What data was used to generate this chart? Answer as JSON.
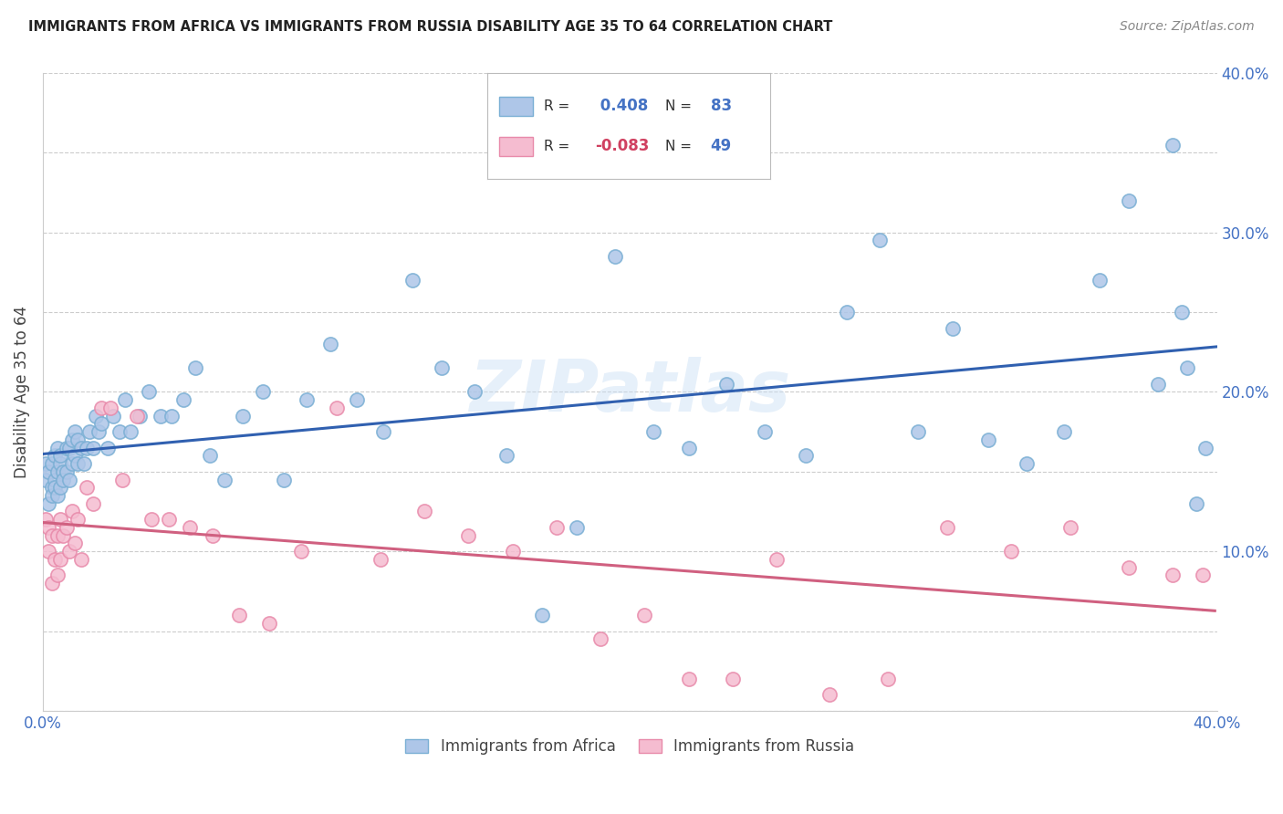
{
  "title": "IMMIGRANTS FROM AFRICA VS IMMIGRANTS FROM RUSSIA DISABILITY AGE 35 TO 64 CORRELATION CHART",
  "source": "Source: ZipAtlas.com",
  "ylabel": "Disability Age 35 to 64",
  "xlim": [
    0.0,
    0.4
  ],
  "ylim": [
    0.0,
    0.4
  ],
  "africa_color": "#aec6e8",
  "russia_color": "#f5bcd0",
  "africa_edge": "#7aafd4",
  "russia_edge": "#e88aaa",
  "trendline_africa_color": "#3060b0",
  "trendline_russia_color": "#d06080",
  "africa_R": 0.408,
  "africa_N": 83,
  "russia_R": -0.083,
  "russia_N": 49,
  "legend_label_africa": "Immigrants from Africa",
  "legend_label_russia": "Immigrants from Russia",
  "watermark": "ZIPatlas",
  "africa_x": [
    0.001,
    0.001,
    0.002,
    0.002,
    0.003,
    0.003,
    0.003,
    0.004,
    0.004,
    0.004,
    0.005,
    0.005,
    0.005,
    0.006,
    0.006,
    0.006,
    0.007,
    0.007,
    0.008,
    0.008,
    0.009,
    0.009,
    0.01,
    0.01,
    0.011,
    0.011,
    0.012,
    0.012,
    0.013,
    0.014,
    0.015,
    0.016,
    0.017,
    0.018,
    0.019,
    0.02,
    0.022,
    0.024,
    0.026,
    0.028,
    0.03,
    0.033,
    0.036,
    0.04,
    0.044,
    0.048,
    0.052,
    0.057,
    0.062,
    0.068,
    0.075,
    0.082,
    0.09,
    0.098,
    0.107,
    0.116,
    0.126,
    0.136,
    0.147,
    0.158,
    0.17,
    0.182,
    0.195,
    0.208,
    0.22,
    0.233,
    0.246,
    0.26,
    0.274,
    0.285,
    0.298,
    0.31,
    0.322,
    0.335,
    0.348,
    0.36,
    0.37,
    0.38,
    0.385,
    0.388,
    0.39,
    0.393,
    0.396
  ],
  "africa_y": [
    0.145,
    0.155,
    0.13,
    0.15,
    0.14,
    0.155,
    0.135,
    0.145,
    0.16,
    0.14,
    0.15,
    0.165,
    0.135,
    0.155,
    0.14,
    0.16,
    0.15,
    0.145,
    0.165,
    0.15,
    0.145,
    0.165,
    0.155,
    0.17,
    0.16,
    0.175,
    0.155,
    0.17,
    0.165,
    0.155,
    0.165,
    0.175,
    0.165,
    0.185,
    0.175,
    0.18,
    0.165,
    0.185,
    0.175,
    0.195,
    0.175,
    0.185,
    0.2,
    0.185,
    0.185,
    0.195,
    0.215,
    0.16,
    0.145,
    0.185,
    0.2,
    0.145,
    0.195,
    0.23,
    0.195,
    0.175,
    0.27,
    0.215,
    0.2,
    0.16,
    0.06,
    0.115,
    0.285,
    0.175,
    0.165,
    0.205,
    0.175,
    0.16,
    0.25,
    0.295,
    0.175,
    0.24,
    0.17,
    0.155,
    0.175,
    0.27,
    0.32,
    0.205,
    0.355,
    0.25,
    0.215,
    0.13,
    0.165
  ],
  "russia_x": [
    0.001,
    0.002,
    0.002,
    0.003,
    0.003,
    0.004,
    0.005,
    0.005,
    0.006,
    0.006,
    0.007,
    0.008,
    0.009,
    0.01,
    0.011,
    0.012,
    0.013,
    0.015,
    0.017,
    0.02,
    0.023,
    0.027,
    0.032,
    0.037,
    0.043,
    0.05,
    0.058,
    0.067,
    0.077,
    0.088,
    0.1,
    0.115,
    0.13,
    0.145,
    0.16,
    0.175,
    0.19,
    0.205,
    0.22,
    0.235,
    0.25,
    0.268,
    0.288,
    0.308,
    0.33,
    0.35,
    0.37,
    0.385,
    0.395
  ],
  "russia_y": [
    0.12,
    0.1,
    0.115,
    0.08,
    0.11,
    0.095,
    0.11,
    0.085,
    0.12,
    0.095,
    0.11,
    0.115,
    0.1,
    0.125,
    0.105,
    0.12,
    0.095,
    0.14,
    0.13,
    0.19,
    0.19,
    0.145,
    0.185,
    0.12,
    0.12,
    0.115,
    0.11,
    0.06,
    0.055,
    0.1,
    0.19,
    0.095,
    0.125,
    0.11,
    0.1,
    0.115,
    0.045,
    0.06,
    0.02,
    0.02,
    0.095,
    0.01,
    0.02,
    0.115,
    0.1,
    0.115,
    0.09,
    0.085,
    0.085
  ]
}
